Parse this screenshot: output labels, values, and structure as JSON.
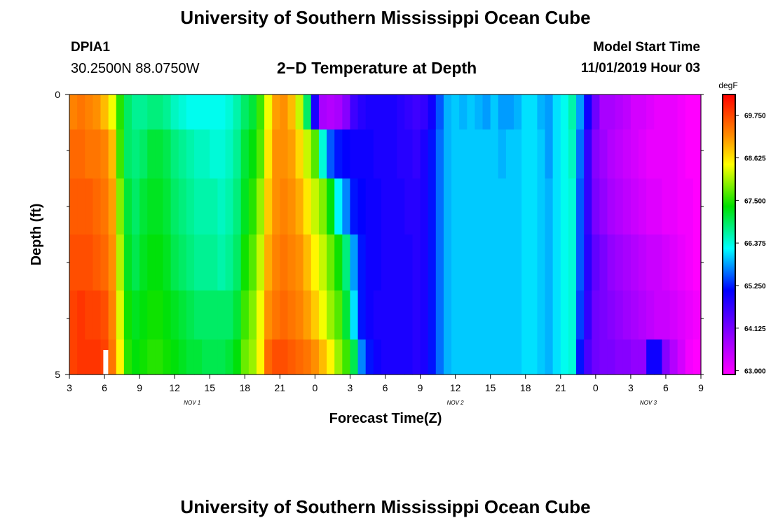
{
  "header": {
    "title": "University of Southern Mississippi Ocean Cube",
    "station_id": "DPIA1",
    "station_coords": "30.2500N 88.0750W",
    "plot_title": "2−D Temperature at Depth",
    "start_label": "Model Start Time",
    "start_value": "11/01/2019 Hour 03"
  },
  "footer": {
    "title": "University of Southern Mississippi Ocean Cube"
  },
  "chart_data": {
    "type": "heatmap",
    "title": "2−D Temperature at Depth",
    "xlabel": "Forecast Time(Z)",
    "ylabel": "Depth (ft)",
    "x_start_hour": 3,
    "x_end_hour": 57,
    "x_ticks": [
      {
        "hour": 3,
        "label": "3"
      },
      {
        "hour": 6,
        "label": "6"
      },
      {
        "hour": 9,
        "label": "9"
      },
      {
        "hour": 12,
        "label": "12"
      },
      {
        "hour": 15,
        "label": "15"
      },
      {
        "hour": 18,
        "label": "18"
      },
      {
        "hour": 21,
        "label": "21"
      },
      {
        "hour": 24,
        "label": "0"
      },
      {
        "hour": 27,
        "label": "3"
      },
      {
        "hour": 30,
        "label": "6"
      },
      {
        "hour": 33,
        "label": "9"
      },
      {
        "hour": 36,
        "label": "12"
      },
      {
        "hour": 39,
        "label": "15"
      },
      {
        "hour": 42,
        "label": "18"
      },
      {
        "hour": 45,
        "label": "21"
      },
      {
        "hour": 48,
        "label": "0"
      },
      {
        "hour": 51,
        "label": "3"
      },
      {
        "hour": 54,
        "label": "6"
      },
      {
        "hour": 57,
        "label": "9"
      }
    ],
    "day_labels": [
      {
        "hour": 13.5,
        "label": "NOV 1"
      },
      {
        "hour": 36,
        "label": "NOV 2"
      },
      {
        "hour": 52.5,
        "label": "NOV 3"
      }
    ],
    "y_ticks": [
      {
        "depth": 0,
        "label": "0"
      },
      {
        "depth": 5,
        "label": "5"
      }
    ],
    "y_minor_ticks": [
      1,
      2,
      3,
      4
    ],
    "ylim": [
      0,
      5
    ],
    "depth_levels": [
      0.25,
      1,
      2,
      3,
      4,
      4.75
    ],
    "colorbar": {
      "unit": "degF",
      "min": 62.9,
      "max": 70.3,
      "ticks": [
        {
          "value": 69.75,
          "label": "69.750"
        },
        {
          "value": 68.625,
          "label": "68.625"
        },
        {
          "value": 67.5,
          "label": "67.500"
        },
        {
          "value": 66.375,
          "label": "66.375"
        },
        {
          "value": 65.25,
          "label": "65.250"
        },
        {
          "value": 64.125,
          "label": "64.125"
        },
        {
          "value": 63.0,
          "label": "63.000"
        }
      ]
    },
    "temperature_series": [
      {
        "depth": 0.25,
        "values": [
          69.3,
          69.4,
          69.3,
          69.2,
          68.9,
          68.4,
          67.5,
          66.9,
          66.7,
          66.7,
          66.8,
          66.8,
          66.7,
          66.5,
          66.4,
          66.3,
          66.3,
          66.3,
          66.3,
          66.3,
          66.4,
          66.6,
          66.9,
          67.1,
          67.6,
          68.4,
          69.1,
          69.2,
          68.9,
          68.2,
          66.9,
          64.9,
          63.7,
          63.6,
          63.7,
          64.0,
          64.6,
          64.8,
          64.9,
          64.9,
          64.9,
          64.9,
          64.8,
          64.7,
          64.6,
          64.7,
          65.0,
          65.5,
          65.9,
          66.0,
          65.9,
          66.0,
          65.9,
          65.8,
          66.0,
          65.8,
          65.8,
          65.9,
          66.1,
          66.1,
          65.9,
          65.8,
          66.1,
          66.3,
          66.6,
          65.8,
          65.0,
          64.2,
          63.7,
          63.7,
          63.6,
          63.5,
          63.3,
          63.3,
          63.2,
          63.1,
          63.1,
          63.1,
          63.0,
          62.9,
          62.9
        ]
      },
      {
        "depth": 1,
        "values": [
          69.5,
          69.5,
          69.4,
          69.4,
          69.3,
          68.9,
          67.6,
          66.9,
          66.8,
          66.9,
          67.1,
          67.1,
          67.0,
          66.8,
          66.7,
          66.6,
          66.5,
          66.5,
          66.4,
          66.4,
          66.5,
          66.7,
          67.1,
          67.3,
          67.7,
          68.6,
          69.2,
          69.2,
          69.1,
          68.7,
          68.2,
          67.7,
          66.4,
          65.5,
          65.2,
          65.1,
          65.0,
          65.0,
          65.0,
          64.9,
          64.9,
          64.9,
          64.8,
          64.8,
          64.7,
          64.9,
          65.2,
          65.6,
          65.9,
          66.0,
          66.0,
          66.0,
          66.0,
          66.0,
          66.0,
          65.9,
          66.0,
          66.0,
          66.1,
          66.1,
          66.0,
          65.8,
          66.1,
          66.3,
          66.5,
          65.6,
          64.7,
          64.0,
          63.8,
          63.6,
          63.5,
          63.4,
          63.3,
          63.2,
          63.1,
          63.1,
          63.1,
          63.1,
          63.0,
          62.9,
          62.9
        ]
      },
      {
        "depth": 2,
        "values": [
          69.6,
          69.6,
          69.6,
          69.5,
          69.4,
          69.1,
          67.9,
          67.1,
          66.9,
          67.1,
          67.2,
          67.2,
          67.1,
          66.9,
          66.8,
          66.7,
          66.6,
          66.6,
          66.6,
          66.5,
          66.6,
          66.8,
          67.2,
          67.5,
          68.0,
          68.8,
          69.2,
          69.3,
          69.2,
          69.0,
          68.6,
          68.2,
          67.9,
          67.3,
          66.2,
          65.7,
          65.2,
          65.1,
          65.0,
          65.0,
          64.9,
          64.9,
          64.9,
          64.8,
          64.8,
          64.9,
          65.2,
          65.6,
          65.9,
          66.0,
          66.0,
          66.0,
          66.0,
          66.0,
          66.0,
          66.0,
          66.0,
          66.0,
          66.1,
          66.1,
          66.0,
          65.9,
          66.1,
          66.3,
          66.4,
          65.5,
          64.7,
          64.1,
          63.9,
          63.7,
          63.6,
          63.5,
          63.4,
          63.3,
          63.2,
          63.2,
          63.1,
          63.1,
          63.0,
          63.0,
          62.9
        ]
      },
      {
        "depth": 3,
        "values": [
          69.7,
          69.7,
          69.7,
          69.6,
          69.5,
          69.2,
          68.1,
          67.2,
          67.0,
          67.2,
          67.3,
          67.3,
          67.2,
          67.0,
          66.9,
          66.8,
          66.7,
          66.7,
          66.7,
          66.6,
          66.7,
          66.9,
          67.4,
          67.7,
          68.2,
          69.0,
          69.3,
          69.4,
          69.3,
          69.2,
          68.9,
          68.5,
          68.2,
          67.8,
          67.4,
          66.8,
          65.8,
          65.2,
          65.0,
          65.0,
          64.9,
          64.9,
          64.9,
          64.9,
          64.8,
          64.9,
          65.2,
          65.6,
          65.9,
          66.0,
          66.0,
          66.0,
          66.0,
          66.0,
          66.0,
          66.0,
          66.0,
          66.0,
          66.1,
          66.1,
          66.0,
          65.9,
          66.1,
          66.3,
          66.4,
          65.5,
          64.8,
          64.3,
          64.1,
          63.9,
          63.8,
          63.7,
          63.6,
          63.5,
          63.4,
          63.4,
          63.3,
          63.2,
          63.1,
          63.0,
          62.9
        ]
      },
      {
        "depth": 4,
        "values": [
          69.8,
          69.9,
          69.8,
          69.8,
          69.7,
          69.3,
          68.3,
          67.4,
          67.2,
          67.3,
          67.4,
          67.4,
          67.3,
          67.2,
          67.1,
          67.0,
          66.9,
          66.9,
          66.9,
          66.9,
          66.9,
          67.1,
          67.6,
          67.9,
          68.4,
          69.2,
          69.4,
          69.5,
          69.4,
          69.3,
          69.1,
          68.8,
          68.4,
          68.0,
          67.7,
          67.1,
          66.1,
          65.2,
          65.0,
          64.9,
          64.9,
          64.9,
          64.9,
          64.9,
          64.8,
          64.9,
          65.2,
          65.6,
          65.9,
          66.0,
          66.0,
          66.0,
          66.0,
          66.0,
          66.0,
          66.0,
          66.0,
          66.0,
          66.1,
          66.1,
          66.0,
          65.9,
          66.1,
          66.3,
          66.4,
          65.4,
          64.7,
          64.2,
          64.1,
          64.0,
          63.9,
          63.8,
          63.7,
          63.6,
          63.5,
          63.4,
          63.4,
          63.3,
          63.2,
          63.1,
          63.0
        ]
      },
      {
        "depth": 4.75,
        "values": [
          69.8,
          69.9,
          69.9,
          69.9,
          69.8,
          69.4,
          68.5,
          67.5,
          67.3,
          67.4,
          67.5,
          67.5,
          67.4,
          67.3,
          67.2,
          67.1,
          67.1,
          67.0,
          67.0,
          67.0,
          67.1,
          67.3,
          67.8,
          68.0,
          68.5,
          69.5,
          69.7,
          69.7,
          69.6,
          69.5,
          69.4,
          69.2,
          68.9,
          68.5,
          68.0,
          67.6,
          67.0,
          65.7,
          65.2,
          65.0,
          64.9,
          64.9,
          64.9,
          64.9,
          64.8,
          64.9,
          65.2,
          65.6,
          65.9,
          66.0,
          66.0,
          66.0,
          66.0,
          66.0,
          66.0,
          66.0,
          66.0,
          66.0,
          66.1,
          66.1,
          66.0,
          65.9,
          66.1,
          66.3,
          66.4,
          65.2,
          64.5,
          64.2,
          64.1,
          64.1,
          64.0,
          64.0,
          63.9,
          63.9,
          65.0,
          65.0,
          64.0,
          63.6,
          63.3,
          63.0,
          62.9
        ]
      }
    ],
    "missing_cells": [
      {
        "depth": 4.75,
        "hour": 5.9
      }
    ]
  }
}
